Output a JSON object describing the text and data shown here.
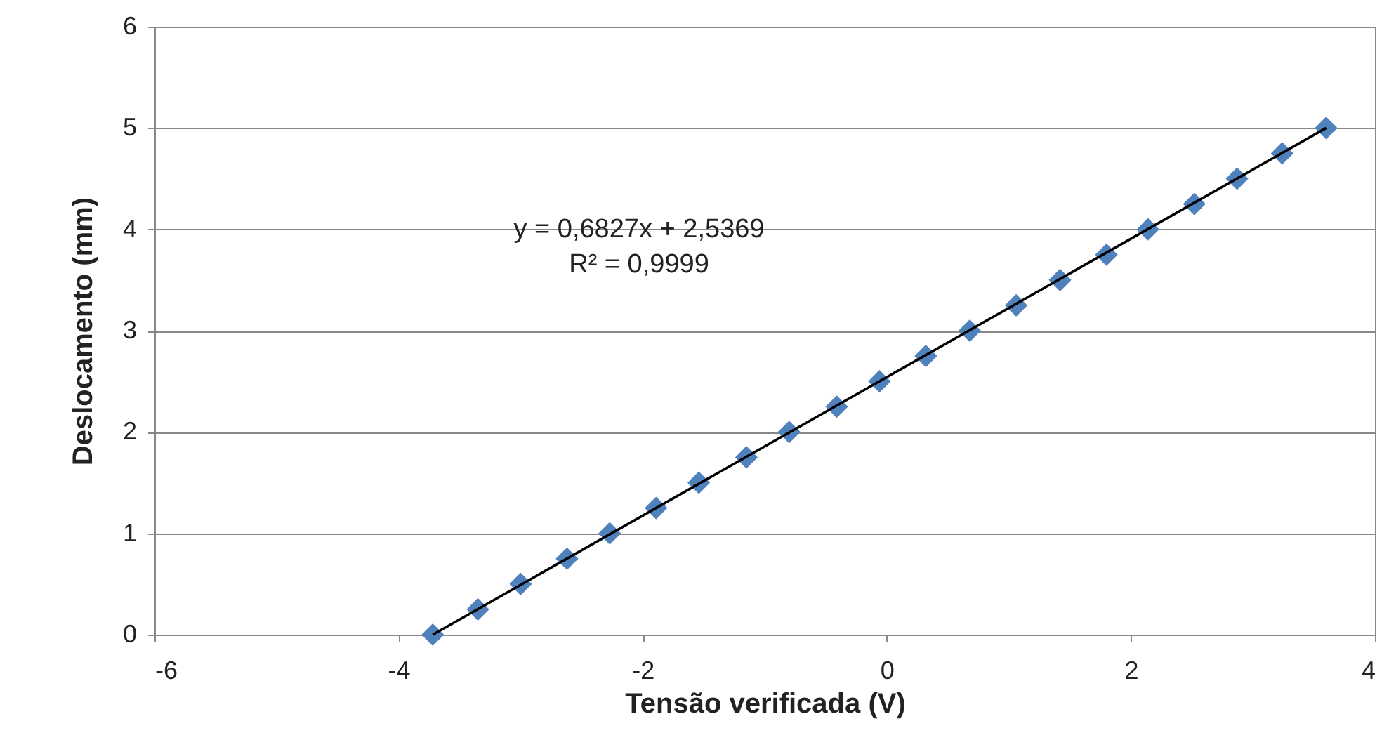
{
  "chart_data": {
    "type": "scatter",
    "xlabel": "Tensão verificada (V)",
    "ylabel": "Deslocamento  (mm)",
    "x": [
      -3.72,
      -3.35,
      -3.0,
      -2.62,
      -2.27,
      -1.89,
      -1.54,
      -1.15,
      -0.8,
      -0.41,
      -0.06,
      0.32,
      0.68,
      1.06,
      1.42,
      1.8,
      2.14,
      2.52,
      2.87,
      3.24,
      3.6
    ],
    "series": [
      {
        "color": "#4f81bd",
        "marker": "diamond",
        "values": [
          0,
          0.25,
          0.5,
          0.75,
          1,
          1.25,
          1.5,
          1.75,
          2,
          2.25,
          2.5,
          2.75,
          3,
          3.25,
          3.5,
          3.75,
          4,
          4.25,
          4.5,
          4.75,
          5
        ]
      },
      {
        "type": "line",
        "color": "#000000",
        "x": [
          -3.72,
          3.6
        ],
        "values": [
          0,
          5
        ]
      }
    ],
    "xlim": [
      -6,
      4
    ],
    "xticks": [
      -6,
      -4,
      -2,
      0,
      2,
      4
    ],
    "ylim": [
      0,
      6
    ],
    "yticks": [
      0,
      1,
      2,
      3,
      4,
      5,
      6
    ],
    "grid": "y",
    "annotations": [
      "y = 0,6827x + 2,5369",
      "R² = 0,9999"
    ]
  }
}
